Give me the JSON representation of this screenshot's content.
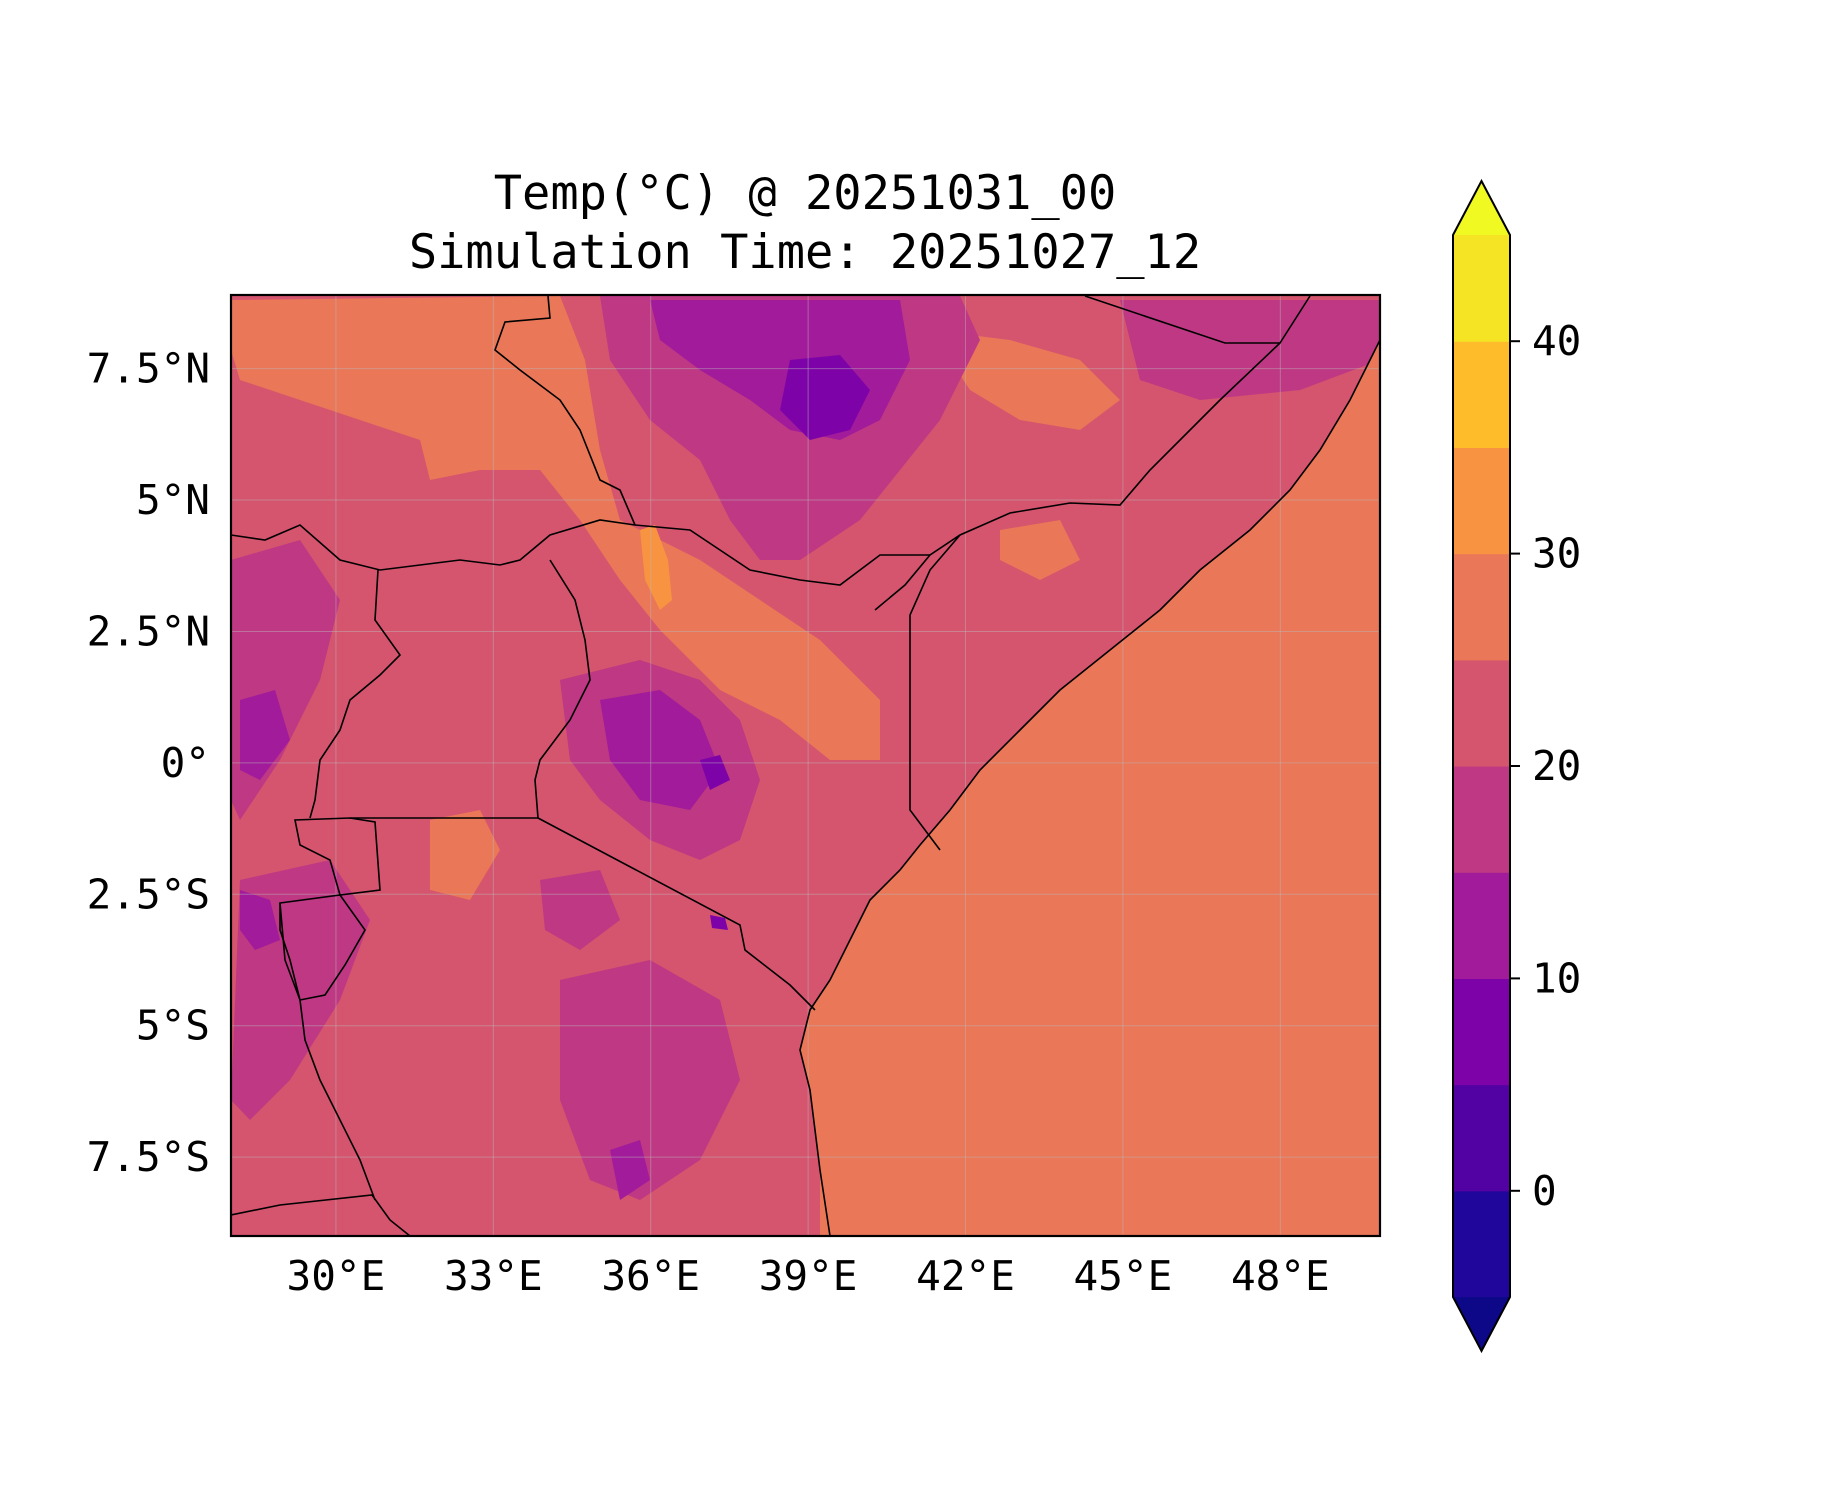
{
  "title": {
    "line1": "Temp(°C) @ 20251031_00",
    "line2": "Simulation Time: 20251027_12"
  },
  "map": {
    "extent": {
      "lon": [
        28.0,
        49.9
      ],
      "lat": [
        -9.0,
        8.9
      ]
    },
    "lon_ticks": [
      {
        "value": 30,
        "label": "30°E"
      },
      {
        "value": 33,
        "label": "33°E"
      },
      {
        "value": 36,
        "label": "36°E"
      },
      {
        "value": 39,
        "label": "39°E"
      },
      {
        "value": 42,
        "label": "42°E"
      },
      {
        "value": 45,
        "label": "45°E"
      },
      {
        "value": 48,
        "label": "48°E"
      }
    ],
    "lat_ticks": [
      {
        "value": 7.5,
        "label": "7.5°N"
      },
      {
        "value": 5,
        "label": "5°N"
      },
      {
        "value": 2.5,
        "label": "2.5°N"
      },
      {
        "value": 0,
        "label": "0°"
      },
      {
        "value": -2.5,
        "label": "2.5°S"
      },
      {
        "value": -5,
        "label": "5°S"
      },
      {
        "value": -7.5,
        "label": "7.5°S"
      }
    ],
    "gridlines": true,
    "ocean_color": "#e97758"
  },
  "colorbar": {
    "levels": [
      -5,
      0,
      5,
      10,
      15,
      20,
      25,
      30,
      35,
      40,
      45
    ],
    "colors": [
      "#20069a",
      "#5201a3",
      "#7d03a8",
      "#a11b9b",
      "#be3883",
      "#d5546e",
      "#e97758",
      "#f89441",
      "#febc2a",
      "#f4e424"
    ],
    "under_color": "#0d0887",
    "over_color": "#f0f921",
    "extend": "both",
    "ticks": [
      {
        "value": 0,
        "label": "0"
      },
      {
        "value": 10,
        "label": "10"
      },
      {
        "value": 20,
        "label": "20"
      },
      {
        "value": 30,
        "label": "30"
      },
      {
        "value": 40,
        "label": "40"
      }
    ]
  }
}
